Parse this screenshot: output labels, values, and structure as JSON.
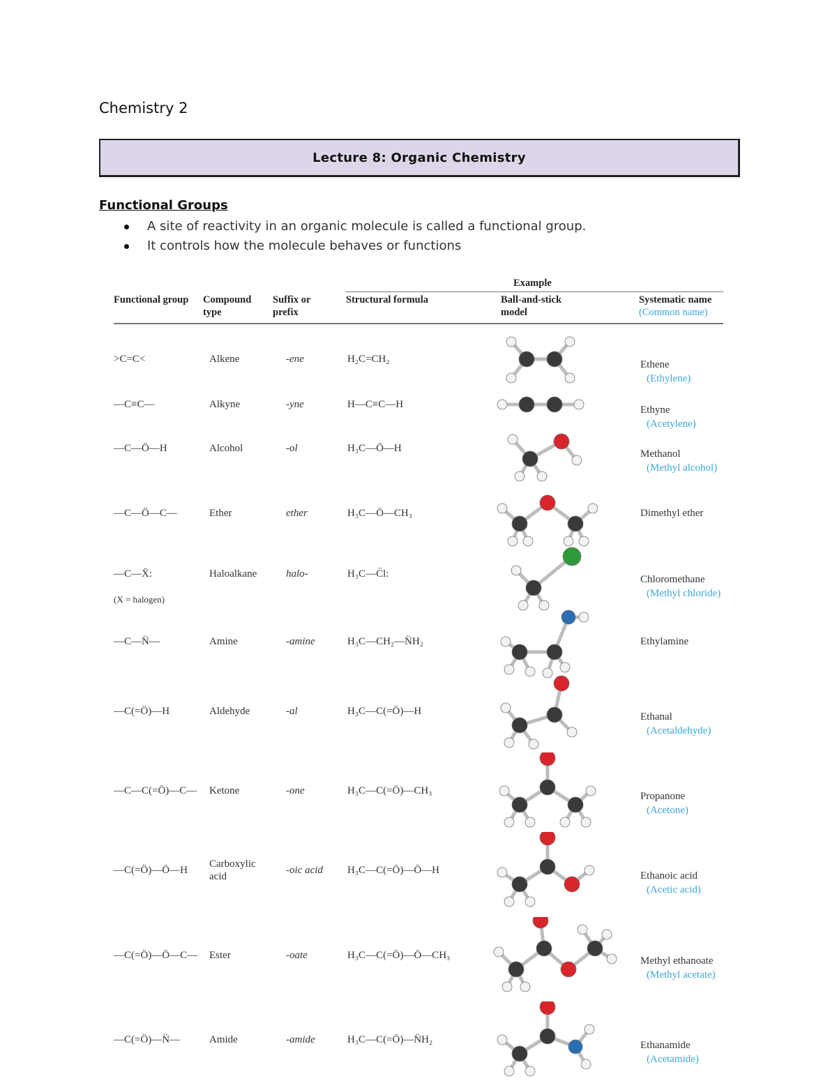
{
  "header": {
    "course": "Chemistry 2"
  },
  "banner": {
    "title": "Lecture 8: Organic Chemistry"
  },
  "section": {
    "heading": "Functional Groups",
    "bullets": [
      "A site of reactivity in an organic molecule is called a functional group.",
      "It controls how the molecule behaves or functions"
    ]
  },
  "table": {
    "group_header": "Example",
    "columns": [
      "Functional group",
      "Compound type",
      "Suffix or prefix",
      "Structural formula",
      "Ball-and-stick model",
      "Systematic name"
    ],
    "common_name_header": "(Common name)",
    "rows": [
      {
        "functional_group": ">C=C<",
        "compound_type": "Alkene",
        "suffix": "-ene",
        "formula": "H₂C=CH₂",
        "systematic_name": "Ethene",
        "common_name": "(Ethylene)"
      },
      {
        "functional_group": "—C≡C—",
        "compound_type": "Alkyne",
        "suffix": "-yne",
        "formula": "H—C≡C—H",
        "systematic_name": "Ethyne",
        "common_name": "(Acetylene)"
      },
      {
        "functional_group": "—C—Ö—H",
        "compound_type": "Alcohol",
        "suffix": "-ol",
        "formula": "H₃C—Ö—H",
        "systematic_name": "Methanol",
        "common_name": "(Methyl alcohol)"
      },
      {
        "functional_group": "—C—Ö—C—",
        "compound_type": "Ether",
        "suffix": "ether",
        "formula": "H₃C—Ö—CH₃",
        "systematic_name": "Dimethyl ether"
      },
      {
        "functional_group": "—C—Ẍ:",
        "group_note": "(X = halogen)",
        "compound_type": "Haloalkane",
        "suffix": "halo-",
        "formula": "H₃C—C̈l:",
        "systematic_name": "Chloromethane",
        "common_name": "(Methyl chloride)"
      },
      {
        "functional_group": "—C—N̈—",
        "compound_type": "Amine",
        "suffix": "-amine",
        "formula": "H₃C—CH₂—N̈H₂",
        "systematic_name": "Ethylamine"
      },
      {
        "functional_group": "—C(=Ö)—H",
        "compound_type": "Aldehyde",
        "suffix": "-al",
        "formula": "H₃C—C(=Ö)—H",
        "systematic_name": "Ethanal",
        "common_name": "(Acetaldehyde)"
      },
      {
        "functional_group": "—C—C(=Ö)—C—",
        "compound_type": "Ketone",
        "suffix": "-one",
        "formula": "H₃C—C(=Ö)—CH₃",
        "systematic_name": "Propanone",
        "common_name": "(Acetone)"
      },
      {
        "functional_group": "—C(=Ö)—Ö—H",
        "compound_type": "Carboxylic acid",
        "suffix": "-oic acid",
        "formula": "H₃C—C(=Ö)—Ö—H",
        "systematic_name": "Ethanoic acid",
        "common_name": "(Acetic acid)"
      },
      {
        "functional_group": "—C(=Ö)—Ö—C—",
        "compound_type": "Ester",
        "suffix": "-oate",
        "formula": "H₃C—C(=Ö)—Ö—CH₃",
        "systematic_name": "Methyl ethanoate",
        "common_name": "(Methyl acetate)"
      },
      {
        "functional_group": "—C(=Ö)—N̈—",
        "compound_type": "Amide",
        "suffix": "-amide",
        "formula": "H₃C—C(=Ö)—N̈H₂",
        "systematic_name": "Ethanamide",
        "common_name": "(Acetamide)"
      }
    ]
  }
}
